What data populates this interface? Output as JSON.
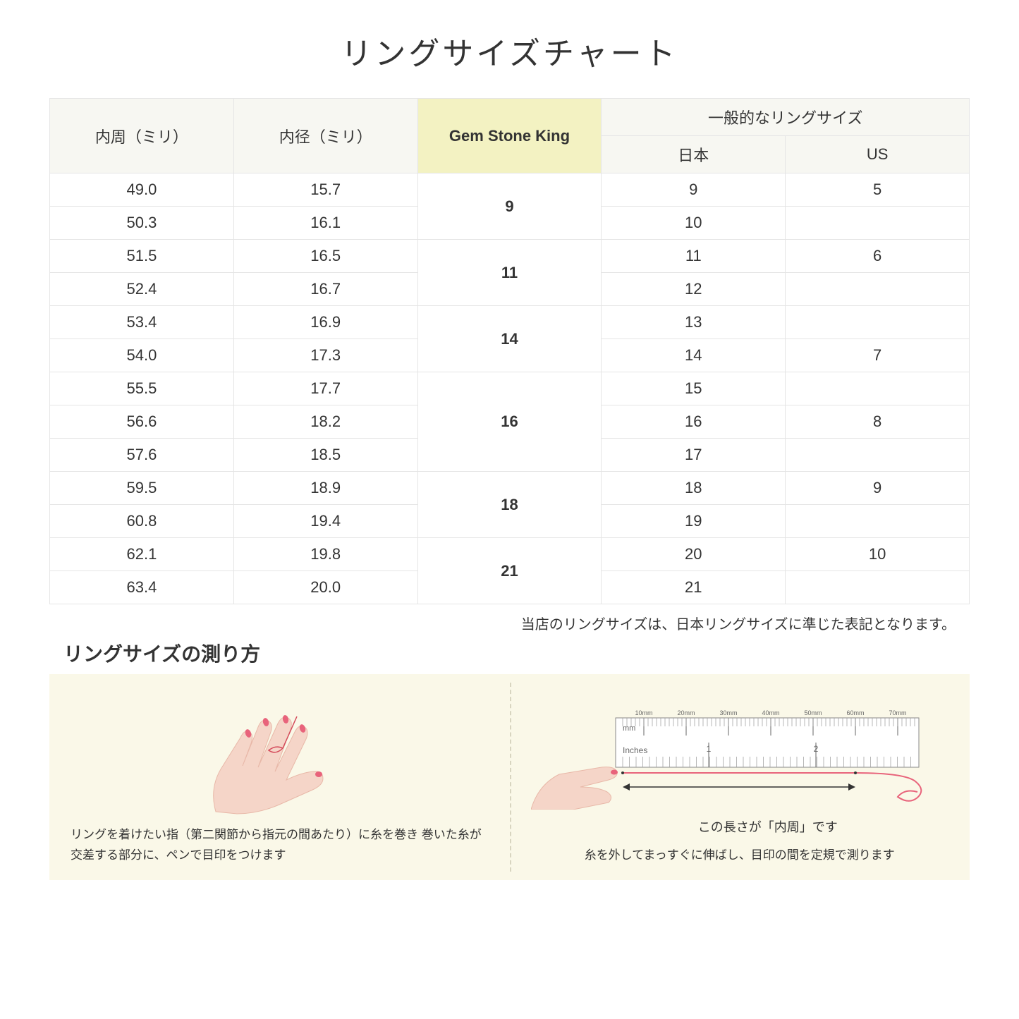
{
  "title": "リングサイズチャート",
  "headers": {
    "col1": "内周（ミリ）",
    "col2": "内径（ミリ）",
    "col3": "Gem Stone King",
    "col4_group": "一般的なリングサイズ",
    "col4a": "日本",
    "col4b": "US"
  },
  "groups": [
    {
      "gsk": "9",
      "rows": [
        {
          "c": "49.0",
          "d": "15.7",
          "jp": "9",
          "us": "5"
        },
        {
          "c": "50.3",
          "d": "16.1",
          "jp": "10",
          "us": ""
        }
      ]
    },
    {
      "gsk": "11",
      "rows": [
        {
          "c": "51.5",
          "d": "16.5",
          "jp": "11",
          "us": "6"
        },
        {
          "c": "52.4",
          "d": "16.7",
          "jp": "12",
          "us": ""
        }
      ]
    },
    {
      "gsk": "14",
      "rows": [
        {
          "c": "53.4",
          "d": "16.9",
          "jp": "13",
          "us": ""
        },
        {
          "c": "54.0",
          "d": "17.3",
          "jp": "14",
          "us": "7"
        }
      ]
    },
    {
      "gsk": "16",
      "rows": [
        {
          "c": "55.5",
          "d": "17.7",
          "jp": "15",
          "us": ""
        },
        {
          "c": "56.6",
          "d": "18.2",
          "jp": "16",
          "us": "8"
        },
        {
          "c": "57.6",
          "d": "18.5",
          "jp": "17",
          "us": ""
        }
      ]
    },
    {
      "gsk": "18",
      "rows": [
        {
          "c": "59.5",
          "d": "18.9",
          "jp": "18",
          "us": "9"
        },
        {
          "c": "60.8",
          "d": "19.4",
          "jp": "19",
          "us": ""
        }
      ]
    },
    {
      "gsk": "21",
      "rows": [
        {
          "c": "62.1",
          "d": "19.8",
          "jp": "20",
          "us": "10"
        },
        {
          "c": "63.4",
          "d": "20.0",
          "jp": "21",
          "us": ""
        }
      ]
    }
  ],
  "note": "当店のリングサイズは、日本リングサイズに準じた表記となります。",
  "subtitle": "リングサイズの測り方",
  "howto": {
    "left_caption": "リングを着けたい指（第二関節から指元の間あたり）に糸を巻き\n巻いた糸が交差する部分に、ペンで目印をつけます",
    "right_label": "この長さが「内周」です",
    "right_caption": "糸を外してまっすぐに伸ばし、目印の間を定規で測ります",
    "ruler_mm": "mm",
    "ruler_in": "Inches",
    "ruler_ticks": [
      "10mm",
      "20mm",
      "30mm",
      "40mm",
      "50mm",
      "60mm",
      "70mm"
    ]
  },
  "colors": {
    "header_bg": "#f7f7f2",
    "highlight_bg": "#f3f2c2",
    "border": "#e5e5e5",
    "howto_bg": "#faf8e8",
    "hand_skin": "#f5d5c8",
    "nail": "#e8637b",
    "thread": "#d44a5a"
  }
}
